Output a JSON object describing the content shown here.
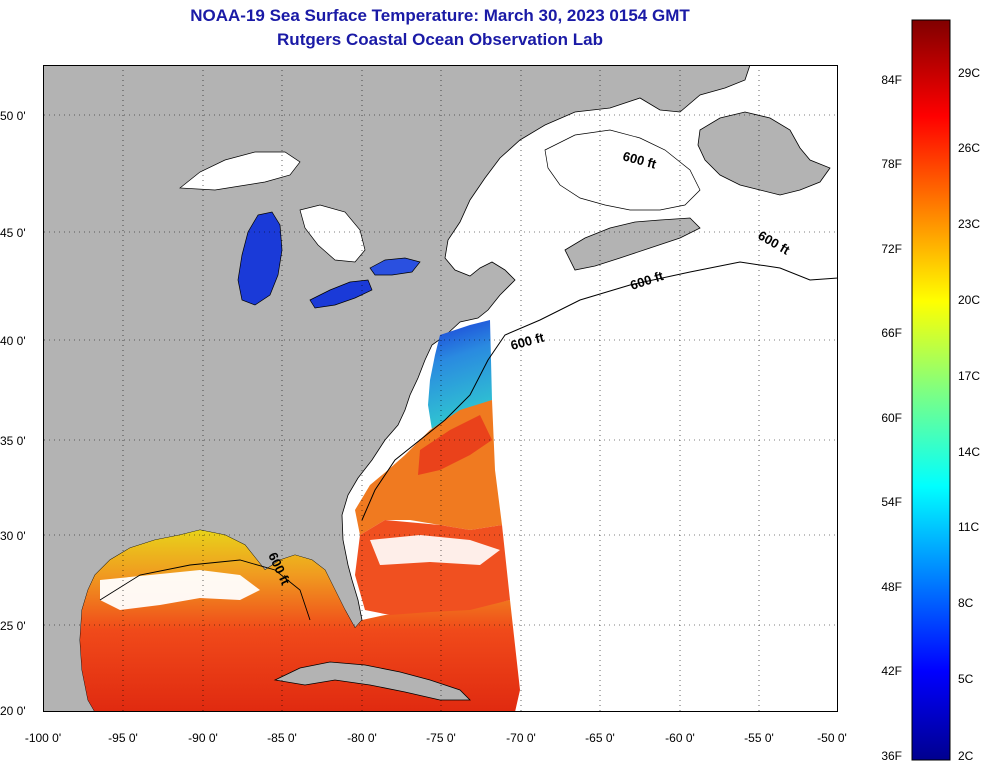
{
  "title": "NOAA-19 Sea Surface Temperature:  March 30, 2023 0154 GMT",
  "subtitle": "Rutgers Coastal Ocean Observation Lab",
  "map": {
    "lon_range": [
      -100,
      -50
    ],
    "lat_range": [
      20,
      52.5
    ],
    "xticks": [
      "-100 0'",
      "-95 0'",
      "-90 0'",
      "-85 0'",
      "-80 0'",
      "-75 0'",
      "-70 0'",
      "-65 0'",
      "-60 0'",
      "-55 0'",
      "-50 0'"
    ],
    "yticks": [
      "20 0'",
      "25 0'",
      "30 0'",
      "35 0'",
      "40 0'",
      "45 0'",
      "50 0'"
    ],
    "contour_labels": [
      "600 ft",
      "600 ft",
      "600 ft",
      "600 ft",
      "600 ft"
    ],
    "land_color": "#b3b3b3",
    "no_data_color": "#ffffff"
  },
  "colorbar": {
    "fahrenheit": [
      "84F",
      "78F",
      "72F",
      "66F",
      "60F",
      "54F",
      "48F",
      "42F",
      "36F"
    ],
    "celsius": [
      "29C",
      "26C",
      "23C",
      "20C",
      "17C",
      "14C",
      "11C",
      "8C",
      "5C",
      "2C"
    ],
    "range_c": [
      2,
      31
    ]
  }
}
